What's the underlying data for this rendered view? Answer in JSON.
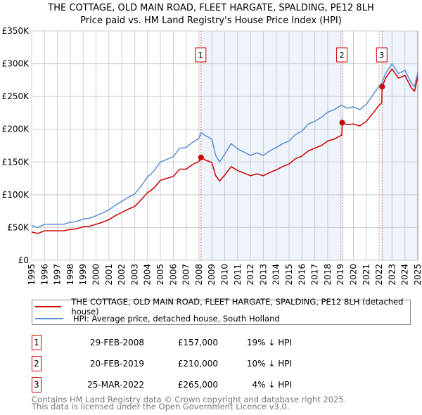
{
  "title_line1": "THE COTTAGE, OLD MAIN ROAD, FLEET HARGATE, SPALDING, PE12 8LH",
  "title_line2": "Price paid vs. HM Land Registry's House Price Index (HPI)",
  "colors": {
    "property": "#cc0000",
    "hpi": "#5b8fd4",
    "shade": "#eef3fc",
    "grid": "#cccccc"
  },
  "chart_data": {
    "type": "line",
    "ylim": [
      0,
      350000
    ],
    "xlim": [
      1995,
      2025
    ],
    "yticks": [
      0,
      50000,
      100000,
      150000,
      200000,
      250000,
      300000,
      350000
    ],
    "ytick_labels": [
      "£0",
      "£50K",
      "£100K",
      "£150K",
      "£200K",
      "£250K",
      "£300K",
      "£350K"
    ],
    "xtick_labels": [
      "1995",
      "1996",
      "1997",
      "1998",
      "1999",
      "2000",
      "2001",
      "2002",
      "2003",
      "2004",
      "2005",
      "2006",
      "2007",
      "2008",
      "2009",
      "2010",
      "2011",
      "2012",
      "2013",
      "2014",
      "2015",
      "2016",
      "2017",
      "2018",
      "2019",
      "2020",
      "2021",
      "2022",
      "2023",
      "2024",
      "2025"
    ],
    "grid": true,
    "x": [
      1995,
      1995.5,
      1996,
      1996.5,
      1997,
      1997.5,
      1998,
      1998.5,
      1999,
      1999.5,
      2000,
      2000.5,
      2001,
      2001.5,
      2002,
      2002.5,
      2003,
      2003.5,
      2004,
      2004.5,
      2005,
      2005.5,
      2006,
      2006.5,
      2007,
      2007.5,
      2008,
      2008.16,
      2008.5,
      2009,
      2009.3,
      2009.6,
      2010,
      2010.5,
      2011,
      2011.5,
      2012,
      2012.5,
      2013,
      2013.5,
      2014,
      2014.5,
      2015,
      2015.5,
      2016,
      2016.5,
      2017,
      2017.5,
      2018,
      2018.5,
      2019,
      2019.1,
      2019.13,
      2019.5,
      2020,
      2020.5,
      2021,
      2021.5,
      2022,
      2022.2,
      2022.23,
      2022.5,
      2023,
      2023.5,
      2024,
      2024.5,
      2024.75,
      2025
    ],
    "series": [
      {
        "name": "THE COTTAGE, OLD MAIN ROAD, FLEET HARGATE, SPALDING, PE12 8LH (detached house)",
        "color": "#cc0000",
        "values_k": [
          43,
          41,
          45,
          45,
          45,
          45,
          47,
          48,
          51,
          52,
          55,
          58,
          62,
          68,
          73,
          78,
          82,
          92,
          103,
          110,
          122,
          125,
          128,
          139,
          139,
          146,
          151,
          157,
          153,
          149,
          129,
          121,
          130,
          143,
          137,
          133,
          129,
          132,
          129,
          134,
          138,
          143,
          147,
          155,
          159,
          167,
          171,
          175,
          182,
          185,
          190,
          191,
          210,
          207,
          208,
          205,
          212,
          224,
          237,
          240,
          265,
          278,
          292,
          278,
          282,
          263,
          258,
          280
        ]
      },
      {
        "name": "HPI: Average price, detached house, South Holland",
        "color": "#5b8fd4",
        "values_k": [
          53,
          50,
          55,
          55,
          55,
          55,
          58,
          59,
          63,
          64,
          68,
          72,
          77,
          84,
          90,
          96,
          101,
          113,
          127,
          136,
          150,
          154,
          158,
          171,
          172,
          180,
          186,
          195,
          190,
          185,
          160,
          150,
          162,
          178,
          170,
          165,
          160,
          164,
          160,
          167,
          172,
          178,
          182,
          192,
          197,
          208,
          212,
          218,
          226,
          230,
          236,
          236,
          236,
          232,
          234,
          230,
          238,
          252,
          266,
          270,
          272,
          285,
          300,
          285,
          290,
          270,
          265,
          287
        ]
      }
    ],
    "sales": [
      {
        "label": "1",
        "x": 2008.16,
        "value": 157000,
        "date": "29-FEB-2008",
        "price": "£157,000",
        "hpi": "19% ↓ HPI"
      },
      {
        "label": "2",
        "x": 2019.13,
        "value": 210000,
        "date": "20-FEB-2019",
        "price": "£210,000",
        "hpi": "10% ↓ HPI"
      },
      {
        "label": "3",
        "x": 2022.23,
        "value": 265000,
        "date": "25-MAR-2022",
        "price": "£265,000",
        "hpi": "4% ↓ HPI"
      }
    ],
    "shaded_ranges": [
      [
        2008.16,
        2019.13
      ],
      [
        2022.23,
        2025
      ]
    ],
    "legend_position": "below"
  },
  "legend": {
    "property": "THE COTTAGE, OLD MAIN ROAD, FLEET HARGATE, SPALDING, PE12 8LH (detached house)",
    "hpi": "HPI: Average price, detached house, South Holland"
  },
  "footer_line1": "Contains HM Land Registry data © Crown copyright and database right 2025.",
  "footer_line2": "This data is licensed under the Open Government Licence v3.0."
}
